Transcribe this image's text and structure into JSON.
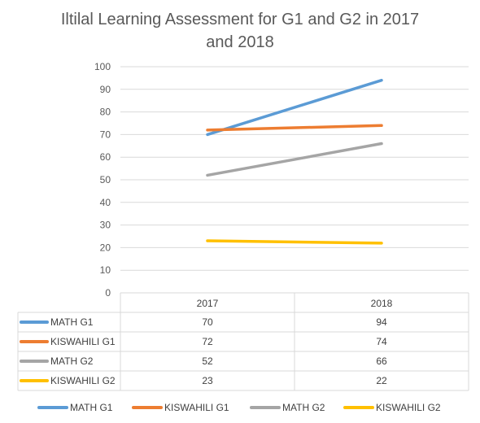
{
  "chart_data": {
    "type": "line",
    "title_line1": "Iltilal Learning Assessment for G1 and G2 in 2017",
    "title_line2": "and 2018",
    "categories": [
      "2017",
      "2018"
    ],
    "ylim": [
      0,
      100
    ],
    "yticks": [
      "0",
      "10",
      "20",
      "30",
      "40",
      "50",
      "60",
      "70",
      "80",
      "90",
      "100"
    ],
    "grid": true,
    "legend_position": "bottom",
    "data_table": true,
    "series": [
      {
        "name": "MATH G1",
        "values": [
          70,
          94
        ],
        "color": "#5B9BD5"
      },
      {
        "name": "KISWAHILI G1",
        "values": [
          72,
          74
        ],
        "color": "#ED7D31"
      },
      {
        "name": "MATH G2",
        "values": [
          52,
          66
        ],
        "color": "#A5A5A5"
      },
      {
        "name": "KISWAHILI G2",
        "values": [
          23,
          22
        ],
        "color": "#FFC000"
      }
    ]
  }
}
